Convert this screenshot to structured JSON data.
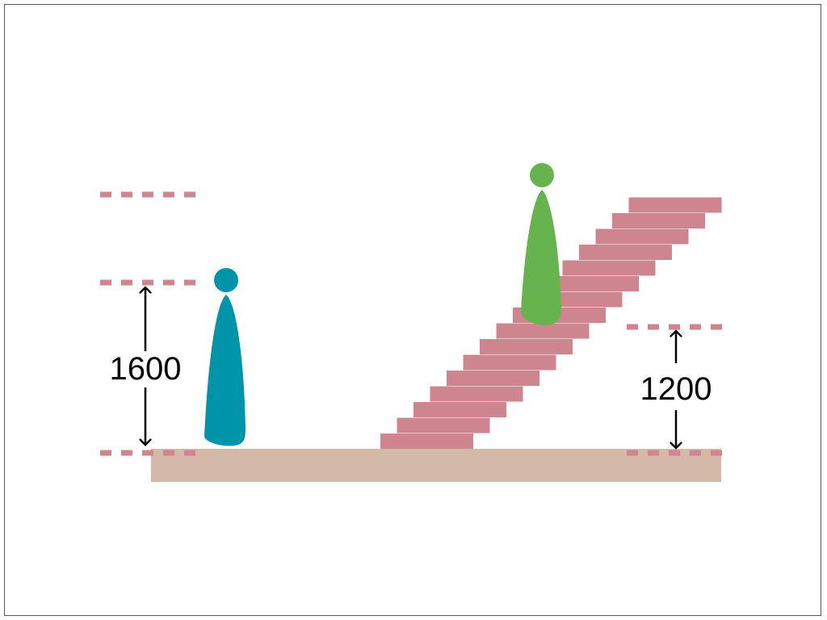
{
  "labels": {
    "left_height": "1600",
    "right_height": "1200"
  },
  "stairs": {
    "step_count": 16
  },
  "colors": {
    "stairs": "#cf858f",
    "floor": "#d4b9a9",
    "dash": "#cf858f",
    "person_standing": "#0094ab",
    "person_on_stairs": "#67b34d",
    "arrow": "#000000"
  }
}
